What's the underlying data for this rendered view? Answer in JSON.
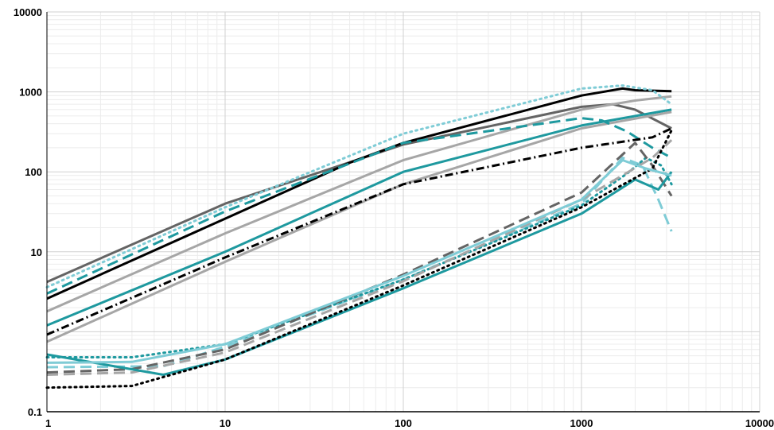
{
  "chart_data": {
    "type": "line",
    "title": "",
    "xlabel": "",
    "ylabel": "",
    "x_scale": "log",
    "y_scale": "log",
    "xlim": [
      1,
      10000
    ],
    "ylim": [
      0.1,
      10000
    ],
    "grid": true,
    "legend": "none",
    "x_tick_labels": [
      "1",
      "10",
      "100",
      "1000",
      "10000"
    ],
    "y_tick_labels": [
      "0.1",
      "10",
      "100",
      "1000",
      "10000"
    ],
    "colors": {
      "black": "#000000",
      "dark_gray": "#646464",
      "light_gray": "#a6a6a6",
      "teal": "#1e999f",
      "light_teal": "#7fccd6",
      "grid_major": "#d0d0d0",
      "grid_minor": "#ececec",
      "axis": "#000000"
    },
    "series": [
      {
        "color": "#646464",
        "style": "solid",
        "x": [
          1,
          10,
          100,
          1000,
          1500,
          2000,
          3200
        ],
        "y": [
          4.2,
          40,
          220,
          650,
          700,
          600,
          350
        ]
      },
      {
        "color": "#000000",
        "style": "solid",
        "x": [
          1,
          10,
          50,
          100,
          1000,
          1700,
          2000,
          3200
        ],
        "y": [
          2.6,
          26,
          130,
          230,
          900,
          1100,
          1050,
          1020
        ]
      },
      {
        "color": "#a6a6a6",
        "style": "solid",
        "x": [
          1,
          10,
          100,
          1000,
          2000,
          3200
        ],
        "y": [
          1.8,
          17,
          140,
          600,
          780,
          880
        ]
      },
      {
        "color": "#1e999f",
        "style": "solid",
        "x": [
          1,
          10,
          100,
          1000,
          3200
        ],
        "y": [
          1.2,
          10,
          100,
          380,
          600
        ]
      },
      {
        "color": "#a6a6a6",
        "style": "solid",
        "x": [
          1,
          10,
          100,
          1000,
          3200
        ],
        "y": [
          0.75,
          7.5,
          70,
          350,
          560
        ]
      },
      {
        "color": "#7fccd6",
        "style": "dotted",
        "x": [
          1,
          10,
          100,
          1000,
          1700,
          2500,
          3200
        ],
        "y": [
          3.6,
          36,
          300,
          1100,
          1200,
          1050,
          700
        ]
      },
      {
        "color": "#1e999f",
        "style": "dashed",
        "x": [
          1,
          10,
          100,
          1000,
          1300,
          1800,
          2500,
          3200
        ],
        "y": [
          3.0,
          32,
          230,
          470,
          440,
          320,
          200,
          150
        ]
      },
      {
        "color": "#000000",
        "style": "dashdot",
        "x": [
          1,
          10,
          100,
          1000,
          2500,
          3200
        ],
        "y": [
          0.92,
          8.5,
          70,
          200,
          270,
          350
        ]
      },
      {
        "color": "#7fccd6",
        "style": "dashed",
        "x": [
          1,
          4.5,
          10,
          100,
          1000,
          1700,
          2200,
          2700,
          3200
        ],
        "y": [
          0.36,
          0.37,
          0.65,
          4.5,
          40,
          150,
          120,
          45,
          18
        ]
      },
      {
        "color": "#1e999f",
        "style": "dotted",
        "x": [
          1,
          3,
          10,
          100,
          1000,
          1800,
          2300,
          2800,
          3200
        ],
        "y": [
          0.48,
          0.48,
          0.7,
          4.5,
          38,
          95,
          150,
          120,
          70
        ]
      },
      {
        "color": "#646464",
        "style": "dashed",
        "x": [
          1,
          3,
          10,
          100,
          1000,
          2000,
          2500,
          3200
        ],
        "y": [
          0.31,
          0.34,
          0.6,
          5.2,
          55,
          230,
          120,
          50
        ]
      },
      {
        "color": "#a6a6a6",
        "style": "dashed",
        "x": [
          1,
          3,
          10,
          100,
          1000,
          2500,
          3200
        ],
        "y": [
          0.29,
          0.31,
          0.55,
          4.3,
          45,
          150,
          250
        ]
      },
      {
        "color": "#1e999f",
        "style": "solid",
        "x": [
          1,
          4.5,
          10,
          100,
          1000,
          2000,
          2700,
          3200
        ],
        "y": [
          0.52,
          0.29,
          0.45,
          3.5,
          30,
          80,
          60,
          100
        ]
      },
      {
        "color": "#000000",
        "style": "dotted",
        "x": [
          1,
          3,
          10,
          100,
          1000,
          2500,
          3200
        ],
        "y": [
          0.2,
          0.21,
          0.45,
          3.8,
          36,
          110,
          330
        ]
      },
      {
        "color": "#7fccd6",
        "style": "solid",
        "x": [
          1,
          3,
          10,
          100,
          1000,
          1700,
          2300,
          3200
        ],
        "y": [
          0.41,
          0.42,
          0.7,
          5.0,
          45,
          140,
          110,
          90
        ]
      }
    ]
  }
}
